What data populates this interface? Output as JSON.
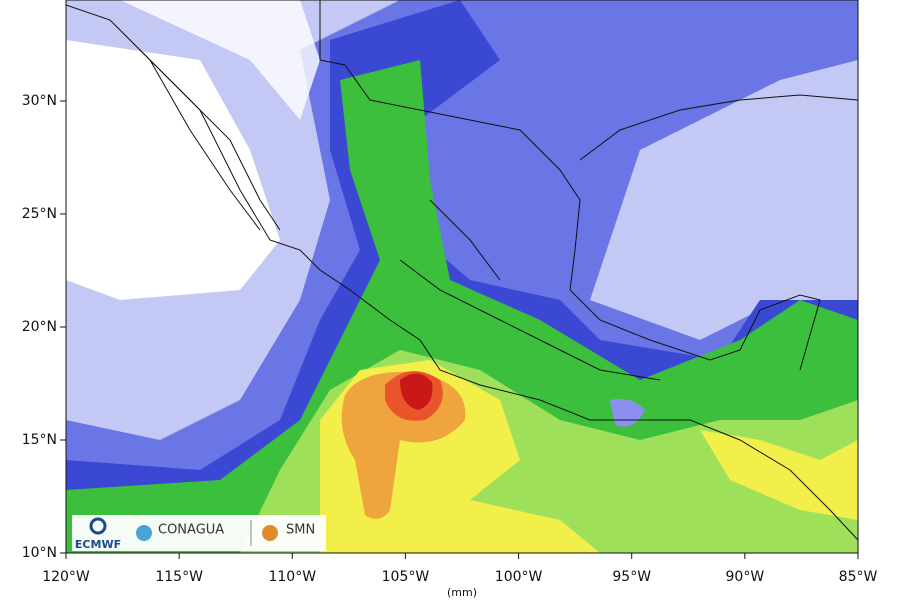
{
  "map": {
    "lon_range": [
      -120,
      -85
    ],
    "lat_range": [
      10,
      34.47
    ],
    "lat_ticks": [
      {
        "value": 30,
        "label": "30°N"
      },
      {
        "value": 25,
        "label": "25°N"
      },
      {
        "value": 20,
        "label": "20°N"
      },
      {
        "value": 15,
        "label": "15°N"
      },
      {
        "value": 10,
        "label": "10°N"
      }
    ],
    "lon_ticks": [
      {
        "value": -120,
        "label": "120°W"
      },
      {
        "value": -115,
        "label": "115°W"
      },
      {
        "value": -110,
        "label": "110°W"
      },
      {
        "value": -105,
        "label": "105°W"
      },
      {
        "value": -100,
        "label": "100°W"
      },
      {
        "value": -95,
        "label": "95°W"
      },
      {
        "value": -90,
        "label": "90°W"
      },
      {
        "value": -85,
        "label": "85°W"
      }
    ],
    "unit_label": "(mm)",
    "logos": {
      "ecmwf": "ECMWF",
      "conagua": "CONAGUA",
      "smn": "SMN"
    }
  }
}
